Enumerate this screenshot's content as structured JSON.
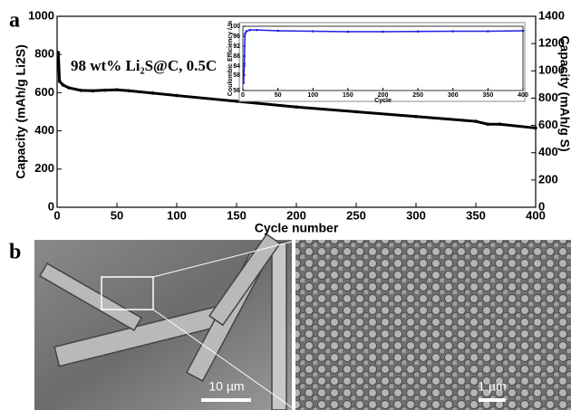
{
  "panel_labels": [
    "a",
    "b"
  ],
  "images": {
    "scale_bars": [
      "10 µm",
      "1 µm"
    ]
  },
  "chart_data": [
    {
      "type": "line",
      "xlabel": "Cycle number",
      "ylabel": "Capacity (mAh/g Li2S)",
      "y2label": "Capacity (mAh/g S)",
      "annotation": "98 wt% Li₂S@C, 0.5C",
      "xlim": [
        0,
        400
      ],
      "xticks": [
        0,
        50,
        100,
        150,
        200,
        250,
        300,
        350,
        400
      ],
      "ylim": [
        0,
        1000
      ],
      "yticks": [
        0,
        200,
        400,
        600,
        800,
        1000
      ],
      "y2lim": [
        0,
        1400
      ],
      "y2ticks": [
        0,
        200,
        400,
        600,
        800,
        1000,
        1200,
        1400
      ],
      "x": [
        1,
        2,
        5,
        10,
        20,
        30,
        40,
        50,
        60,
        80,
        100,
        150,
        200,
        250,
        300,
        350,
        360,
        370,
        400
      ],
      "series": [
        {
          "color": "#000000",
          "values": [
            810,
            660,
            640,
            625,
            612,
            610,
            613,
            615,
            610,
            598,
            585,
            555,
            525,
            500,
            475,
            450,
            435,
            435,
            415
          ]
        }
      ]
    },
    {
      "type": "line",
      "xlabel": "Cycle",
      "ylabel": "Coulombic Efficiency / %",
      "xlim": [
        0,
        400
      ],
      "xticks": [
        0,
        50,
        100,
        150,
        200,
        250,
        300,
        350,
        400
      ],
      "ylim": [
        56,
        100
      ],
      "y_break": [
        58,
        84
      ],
      "yticks": [
        56,
        58,
        84,
        88,
        92,
        96,
        100
      ],
      "x": [
        1,
        2,
        3,
        5,
        10,
        20,
        50,
        100,
        150,
        200,
        250,
        300,
        350,
        400
      ],
      "series": [
        {
          "color": "#1f1fe0",
          "values": [
            57,
            85,
            97,
            98,
            98.5,
            98.5,
            98.2,
            98,
            97.8,
            97.8,
            97.9,
            98,
            98,
            98.2
          ]
        }
      ]
    }
  ]
}
